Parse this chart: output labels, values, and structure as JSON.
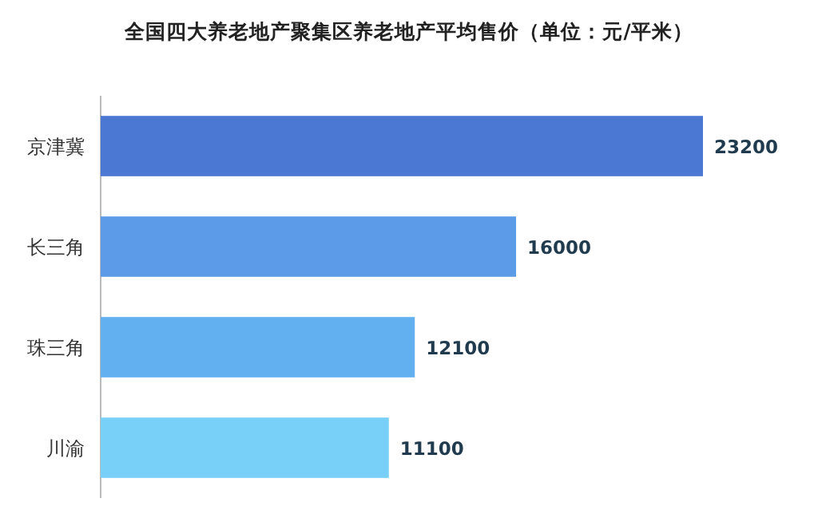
{
  "chart_data": {
    "type": "bar",
    "orientation": "horizontal",
    "title": "全国四大养老地产聚集区养老地产平均售价（单位：元/平米）",
    "categories": [
      "京津冀",
      "长三角",
      "珠三角",
      "川渝"
    ],
    "values": [
      23200,
      16000,
      12100,
      11100
    ],
    "colors": [
      "#4a78d2",
      "#5b9be8",
      "#62b0f0",
      "#78cff7"
    ],
    "data_labels": true
  }
}
